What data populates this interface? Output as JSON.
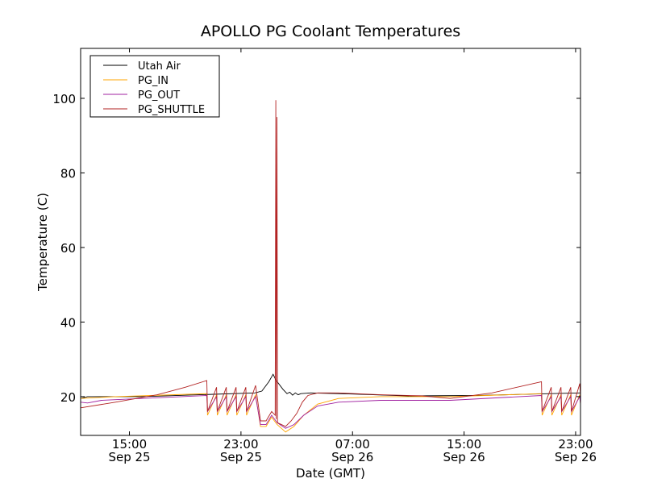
{
  "chart_data": {
    "type": "line",
    "title": "APOLLO PG Coolant Temperatures",
    "xlabel": "Date (GMT)",
    "ylabel": "Temperature (C)",
    "x_unit": "hours since Sep 25 00:00 GMT",
    "xlim": [
      11.5,
      47.35
    ],
    "ylim": [
      9.6,
      113.4
    ],
    "grid": false,
    "legend_position": "top-left",
    "yticks": [
      20,
      40,
      60,
      80,
      100
    ],
    "xticks": [
      {
        "value": 15,
        "time": "15:00",
        "date": "Sep 25"
      },
      {
        "value": 23,
        "time": "23:00",
        "date": "Sep 25"
      },
      {
        "value": 31,
        "time": "07:00",
        "date": "Sep 26"
      },
      {
        "value": 39,
        "time": "15:00",
        "date": "Sep 26"
      },
      {
        "value": 47,
        "time": "23:00",
        "date": "Sep 26"
      }
    ],
    "series": [
      {
        "name": "Utah Air",
        "color": "#000000",
        "points": [
          [
            11.5,
            19.5
          ],
          [
            12,
            20
          ],
          [
            16,
            20
          ],
          [
            20,
            20.5
          ],
          [
            24,
            21
          ],
          [
            24.5,
            21.5
          ],
          [
            25,
            24
          ],
          [
            25.3,
            26
          ],
          [
            25.5,
            24.5
          ],
          [
            26,
            22
          ],
          [
            26.3,
            20.8
          ],
          [
            26.5,
            21.2
          ],
          [
            26.7,
            20.4
          ],
          [
            26.9,
            21
          ],
          [
            27.1,
            20.5
          ],
          [
            27.3,
            20.8
          ],
          [
            28,
            21
          ],
          [
            31,
            20.7
          ],
          [
            35,
            20.2
          ],
          [
            40,
            20.3
          ],
          [
            44,
            20.7
          ],
          [
            47.4,
            21
          ]
        ]
      },
      {
        "name": "PG_IN",
        "color": "#ffa500",
        "points": [
          [
            11.5,
            19.5
          ],
          [
            14,
            20
          ],
          [
            20.55,
            20.8
          ],
          [
            20.6,
            15
          ],
          [
            21.25,
            20.5
          ],
          [
            21.3,
            15
          ],
          [
            21.95,
            20.5
          ],
          [
            22.0,
            15
          ],
          [
            22.65,
            20.5
          ],
          [
            22.7,
            15
          ],
          [
            23.35,
            20.5
          ],
          [
            23.4,
            15
          ],
          [
            24.05,
            20.5
          ],
          [
            24.4,
            12
          ],
          [
            24.8,
            12
          ],
          [
            25.2,
            14.5
          ],
          [
            25.6,
            12.5
          ],
          [
            26.2,
            10.5
          ],
          [
            26.8,
            12
          ],
          [
            27.5,
            15
          ],
          [
            28.5,
            18
          ],
          [
            30,
            19.5
          ],
          [
            33,
            20
          ],
          [
            38,
            20
          ],
          [
            44.55,
            20.8
          ],
          [
            44.6,
            15
          ],
          [
            45.25,
            20.5
          ],
          [
            45.3,
            15
          ],
          [
            45.95,
            20.5
          ],
          [
            46.0,
            15
          ],
          [
            46.65,
            20.5
          ],
          [
            46.7,
            15
          ],
          [
            47.3,
            20.5
          ],
          [
            47.4,
            15.5
          ]
        ]
      },
      {
        "name": "PG_OUT",
        "color": "#a020a0",
        "points": [
          [
            11.5,
            18.5
          ],
          [
            12,
            18.3
          ],
          [
            13,
            19
          ],
          [
            20.55,
            20.3
          ],
          [
            20.6,
            16
          ],
          [
            21.25,
            20
          ],
          [
            21.3,
            16
          ],
          [
            21.95,
            20
          ],
          [
            22.0,
            16
          ],
          [
            22.65,
            20
          ],
          [
            22.7,
            16
          ],
          [
            23.35,
            20
          ],
          [
            23.4,
            16
          ],
          [
            24.05,
            20
          ],
          [
            24.4,
            12.5
          ],
          [
            24.8,
            12.5
          ],
          [
            25.2,
            15
          ],
          [
            25.6,
            13
          ],
          [
            26.2,
            11.5
          ],
          [
            26.8,
            12.5
          ],
          [
            27.5,
            15
          ],
          [
            28.5,
            17.5
          ],
          [
            30,
            18.5
          ],
          [
            33,
            19
          ],
          [
            38,
            19
          ],
          [
            44.55,
            20.3
          ],
          [
            44.6,
            16
          ],
          [
            45.25,
            20
          ],
          [
            45.3,
            16
          ],
          [
            45.95,
            20
          ],
          [
            46.0,
            16
          ],
          [
            46.65,
            20
          ],
          [
            46.7,
            16
          ],
          [
            47.3,
            20
          ],
          [
            47.4,
            16
          ]
        ]
      },
      {
        "name": "PG_SHUTTLE",
        "color": "#b22222",
        "points": [
          [
            11.5,
            17
          ],
          [
            14,
            18.5
          ],
          [
            17,
            20.5
          ],
          [
            19,
            22.5
          ],
          [
            20.55,
            24.3
          ],
          [
            20.6,
            16
          ],
          [
            21.25,
            22.5
          ],
          [
            21.3,
            16
          ],
          [
            21.95,
            22.5
          ],
          [
            22.0,
            16
          ],
          [
            22.65,
            22.5
          ],
          [
            22.7,
            16
          ],
          [
            23.35,
            22.5
          ],
          [
            23.4,
            16
          ],
          [
            24.05,
            23
          ],
          [
            24.4,
            13.5
          ],
          [
            24.8,
            13.5
          ],
          [
            25.2,
            16
          ],
          [
            25.45,
            15
          ],
          [
            25.5,
            99.5
          ],
          [
            25.53,
            14
          ],
          [
            25.58,
            95
          ],
          [
            25.62,
            13
          ],
          [
            26.2,
            12
          ],
          [
            26.6,
            13.5
          ],
          [
            27,
            15.5
          ],
          [
            27.4,
            18.5
          ],
          [
            27.8,
            20.3
          ],
          [
            28.5,
            21
          ],
          [
            30,
            21
          ],
          [
            33,
            20.5
          ],
          [
            36,
            20.2
          ],
          [
            38,
            19.5
          ],
          [
            41,
            21
          ],
          [
            44.55,
            24
          ],
          [
            44.6,
            16
          ],
          [
            45.25,
            22.5
          ],
          [
            45.3,
            16
          ],
          [
            45.95,
            22.5
          ],
          [
            46.0,
            16
          ],
          [
            46.65,
            22.5
          ],
          [
            46.7,
            16
          ],
          [
            47.3,
            23.5
          ],
          [
            47.4,
            16
          ]
        ]
      }
    ]
  }
}
